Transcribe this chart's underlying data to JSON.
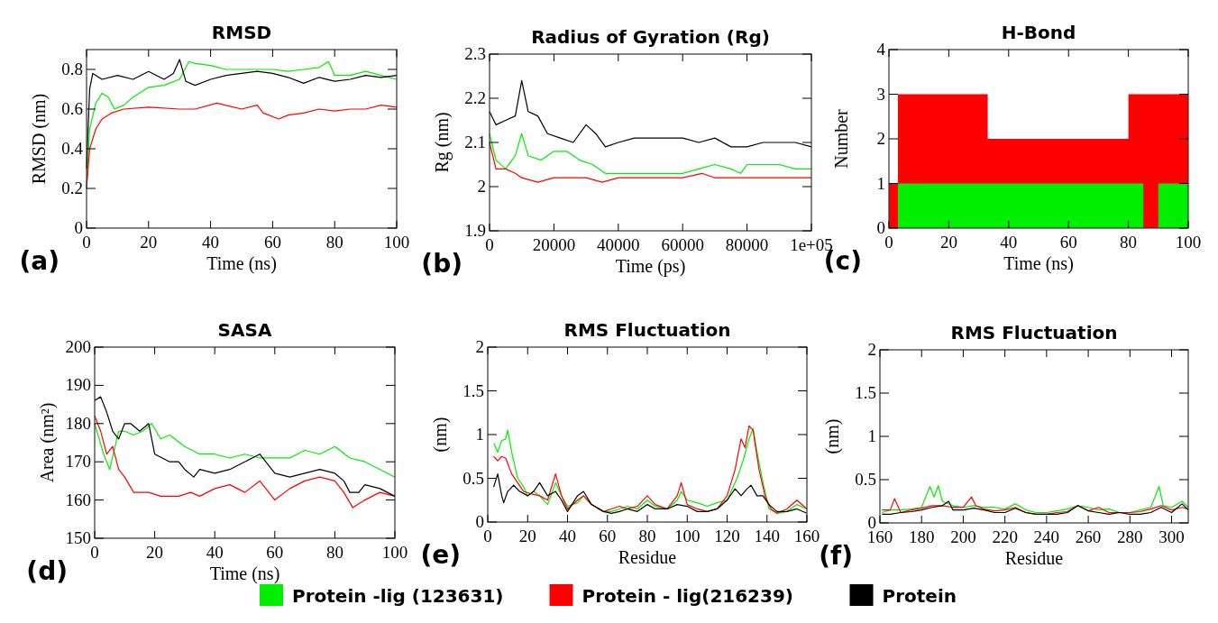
{
  "chart_data": [
    {
      "type": "line",
      "title": "RMSD",
      "xlabel": "Time (ns)",
      "ylabel": "RMSD (nm)",
      "xlim": [
        0,
        100
      ],
      "xticks": [
        0,
        20,
        40,
        60,
        80,
        100
      ],
      "ylim": [
        0,
        0.9
      ],
      "yticks": [
        0,
        0.2,
        0.4,
        0.6,
        0.8
      ],
      "legend": "bottom",
      "annotations": [
        "(a)"
      ],
      "series": [
        {
          "name": "Protein -lig (123631)",
          "color": "#00ee00",
          "x": [
            0,
            1,
            3,
            5,
            7,
            9,
            12,
            15,
            20,
            25,
            30,
            33,
            35,
            40,
            45,
            50,
            55,
            60,
            65,
            70,
            75,
            78,
            80,
            85,
            90,
            95,
            100
          ],
          "values": [
            0.2,
            0.5,
            0.63,
            0.68,
            0.66,
            0.6,
            0.62,
            0.66,
            0.71,
            0.72,
            0.75,
            0.84,
            0.83,
            0.82,
            0.8,
            0.8,
            0.8,
            0.8,
            0.79,
            0.8,
            0.81,
            0.84,
            0.77,
            0.77,
            0.79,
            0.77,
            0.75
          ]
        },
        {
          "name": "Protein  - lig(216239)",
          "color": "#ff0000",
          "x": [
            0,
            1,
            3,
            5,
            8,
            12,
            20,
            30,
            35,
            42,
            50,
            55,
            57,
            62,
            65,
            70,
            75,
            80,
            85,
            90,
            95,
            100
          ],
          "values": [
            0.2,
            0.4,
            0.5,
            0.55,
            0.58,
            0.6,
            0.61,
            0.6,
            0.6,
            0.63,
            0.6,
            0.62,
            0.58,
            0.55,
            0.57,
            0.58,
            0.6,
            0.59,
            0.6,
            0.6,
            0.62,
            0.61
          ]
        },
        {
          "name": "Protein",
          "color": "#000000",
          "x": [
            0,
            1,
            2,
            5,
            10,
            15,
            20,
            25,
            28,
            30,
            32,
            35,
            40,
            45,
            50,
            55,
            60,
            65,
            70,
            75,
            80,
            85,
            90,
            95,
            100
          ],
          "values": [
            0.3,
            0.7,
            0.78,
            0.75,
            0.77,
            0.75,
            0.79,
            0.75,
            0.78,
            0.85,
            0.74,
            0.72,
            0.75,
            0.77,
            0.78,
            0.79,
            0.78,
            0.76,
            0.73,
            0.76,
            0.74,
            0.75,
            0.77,
            0.76,
            0.77
          ]
        }
      ]
    },
    {
      "type": "line",
      "title": "Radius of Gyration (Rg)",
      "xlabel": "Time (ps)",
      "ylabel": "Rg (nm)",
      "xlim": [
        0,
        100000
      ],
      "xticks": [
        0,
        20000,
        40000,
        60000,
        80000,
        {
          "value": 100000,
          "label": "1e+05"
        }
      ],
      "ylim": [
        1.9,
        2.3
      ],
      "yticks": [
        1.9,
        2,
        2.1,
        2.2,
        2.3
      ],
      "annotations": [
        "(b)"
      ],
      "series": [
        {
          "color": "#00ee00",
          "x": [
            0,
            2000,
            5000,
            8000,
            10000,
            12000,
            16000,
            20000,
            24000,
            28000,
            32000,
            36000,
            40000,
            50000,
            60000,
            65000,
            70000,
            75000,
            78000,
            80000,
            85000,
            90000,
            95000,
            100000
          ],
          "values": [
            2.12,
            2.06,
            2.04,
            2.07,
            2.12,
            2.07,
            2.06,
            2.08,
            2.08,
            2.06,
            2.05,
            2.03,
            2.03,
            2.03,
            2.03,
            2.04,
            2.05,
            2.04,
            2.03,
            2.05,
            2.05,
            2.05,
            2.04,
            2.04
          ]
        },
        {
          "color": "#ff0000",
          "x": [
            0,
            2000,
            5000,
            8000,
            10000,
            15000,
            20000,
            25000,
            30000,
            35000,
            40000,
            50000,
            60000,
            66000,
            70000,
            75000,
            80000,
            85000,
            90000,
            95000,
            100000
          ],
          "values": [
            2.1,
            2.04,
            2.04,
            2.03,
            2.02,
            2.01,
            2.02,
            2.02,
            2.02,
            2.01,
            2.02,
            2.02,
            2.02,
            2.03,
            2.02,
            2.02,
            2.02,
            2.02,
            2.02,
            2.02,
            2.02
          ]
        },
        {
          "color": "#000000",
          "x": [
            0,
            2000,
            5000,
            8000,
            10000,
            12000,
            15000,
            18000,
            22000,
            26000,
            30000,
            33000,
            36000,
            40000,
            45000,
            50000,
            55000,
            60000,
            65000,
            70000,
            75000,
            80000,
            85000,
            90000,
            95000,
            100000
          ],
          "values": [
            2.17,
            2.14,
            2.15,
            2.16,
            2.24,
            2.17,
            2.16,
            2.12,
            2.11,
            2.1,
            2.14,
            2.12,
            2.09,
            2.1,
            2.11,
            2.11,
            2.11,
            2.11,
            2.1,
            2.11,
            2.09,
            2.09,
            2.1,
            2.1,
            2.1,
            2.09
          ]
        }
      ]
    },
    {
      "type": "area",
      "title": "H-Bond",
      "xlabel": "Time (ns)",
      "ylabel": "Number",
      "xlim": [
        0,
        100
      ],
      "xticks": [
        0,
        20,
        40,
        60,
        80,
        100
      ],
      "ylim": [
        0,
        4
      ],
      "yticks": [
        0,
        1,
        2,
        3,
        4
      ],
      "annotations": [
        "(c)"
      ],
      "series": [
        {
          "color": "#ff0000",
          "x": [
            0,
            3,
            33,
            80,
            100
          ],
          "values": [
            1,
            3,
            2,
            3,
            3
          ]
        },
        {
          "color": "#00ee00",
          "x": [
            0,
            3,
            85,
            90,
            100
          ],
          "values": [
            0,
            1,
            0,
            1,
            1
          ]
        }
      ]
    },
    {
      "type": "line",
      "title": "SASA",
      "xlabel": "Time (ns)",
      "ylabel": "Area (nm²)",
      "xlim": [
        0,
        100
      ],
      "xticks": [
        0,
        20,
        40,
        60,
        80,
        100
      ],
      "ylim": [
        150,
        200
      ],
      "yticks": [
        150,
        160,
        170,
        180,
        190,
        200
      ],
      "annotations": [
        "(d)"
      ],
      "series": [
        {
          "color": "#00ee00",
          "x": [
            0,
            3,
            5,
            8,
            10,
            13,
            16,
            19,
            22,
            25,
            30,
            35,
            40,
            45,
            50,
            55,
            60,
            65,
            70,
            75,
            80,
            85,
            90,
            95,
            100
          ],
          "values": [
            180,
            172,
            168,
            178,
            178,
            177,
            178,
            180,
            176,
            177,
            174,
            172,
            172,
            171,
            172,
            171,
            171,
            171,
            173,
            172,
            174,
            171,
            170,
            168,
            166
          ]
        },
        {
          "color": "#ff0000",
          "x": [
            0,
            2,
            4,
            6,
            8,
            10,
            13,
            18,
            22,
            28,
            32,
            35,
            40,
            45,
            50,
            55,
            58,
            60,
            65,
            70,
            75,
            80,
            83,
            86,
            90,
            95,
            100
          ],
          "values": [
            182,
            178,
            172,
            174,
            168,
            166,
            162,
            162,
            161,
            161,
            162,
            161,
            163,
            164,
            162,
            165,
            162,
            160,
            163,
            165,
            166,
            165,
            162,
            158,
            160,
            162,
            161
          ]
        },
        {
          "color": "#000000",
          "x": [
            0,
            2,
            4,
            6,
            8,
            10,
            12,
            15,
            18,
            20,
            25,
            28,
            30,
            33,
            35,
            40,
            45,
            50,
            55,
            60,
            65,
            70,
            75,
            80,
            83,
            85,
            88,
            90,
            95,
            100
          ],
          "values": [
            186,
            187,
            183,
            178,
            176,
            180,
            180,
            178,
            180,
            172,
            170,
            170,
            168,
            166,
            168,
            167,
            168,
            170,
            172,
            167,
            166,
            167,
            168,
            167,
            165,
            162,
            162,
            164,
            163,
            161
          ]
        }
      ]
    },
    {
      "type": "line",
      "title": "RMS Fluctuation",
      "xlabel": "Residue",
      "ylabel": "(nm)",
      "xlim": [
        0,
        160
      ],
      "xticks": [
        0,
        20,
        40,
        60,
        80,
        100,
        120,
        140,
        160
      ],
      "ylim": [
        0,
        2
      ],
      "yticks": [
        0,
        0.5,
        1,
        1.5,
        2
      ],
      "annotations": [
        "(e)"
      ],
      "series": [
        {
          "color": "#00ee00",
          "x": [
            3,
            5,
            7,
            9,
            10,
            12,
            15,
            18,
            20,
            23,
            26,
            30,
            34,
            37,
            40,
            45,
            48,
            52,
            58,
            62,
            66,
            70,
            75,
            80,
            84,
            90,
            95,
            97,
            100,
            105,
            110,
            115,
            120,
            125,
            128,
            131,
            133,
            135,
            138,
            141,
            145,
            150,
            155,
            160
          ],
          "values": [
            0.9,
            0.8,
            0.93,
            0.95,
            1.05,
            0.8,
            0.5,
            0.4,
            0.3,
            0.35,
            0.3,
            0.2,
            0.45,
            0.3,
            0.18,
            0.22,
            0.3,
            0.2,
            0.12,
            0.12,
            0.15,
            0.18,
            0.15,
            0.25,
            0.18,
            0.15,
            0.25,
            0.35,
            0.25,
            0.22,
            0.18,
            0.22,
            0.25,
            0.5,
            0.7,
            0.95,
            1.07,
            0.8,
            0.45,
            0.15,
            0.1,
            0.12,
            0.2,
            0.15
          ]
        },
        {
          "color": "#ff0000",
          "x": [
            3,
            5,
            7,
            9,
            12,
            15,
            18,
            22,
            26,
            30,
            34,
            37,
            40,
            45,
            48,
            52,
            58,
            62,
            66,
            70,
            75,
            80,
            84,
            90,
            95,
            97,
            100,
            105,
            110,
            115,
            120,
            124,
            127,
            129,
            131,
            133,
            136,
            139,
            142,
            145,
            150,
            155,
            160
          ],
          "values": [
            0.75,
            0.7,
            0.75,
            0.73,
            0.55,
            0.45,
            0.35,
            0.32,
            0.3,
            0.25,
            0.55,
            0.3,
            0.15,
            0.25,
            0.3,
            0.2,
            0.12,
            0.15,
            0.18,
            0.15,
            0.18,
            0.3,
            0.2,
            0.15,
            0.3,
            0.45,
            0.2,
            0.15,
            0.12,
            0.15,
            0.3,
            0.6,
            0.95,
            0.85,
            1.1,
            1.05,
            0.6,
            0.3,
            0.15,
            0.1,
            0.15,
            0.25,
            0.15
          ]
        },
        {
          "color": "#000000",
          "x": [
            3,
            5,
            7,
            8,
            10,
            13,
            16,
            20,
            23,
            26,
            30,
            34,
            37,
            40,
            45,
            48,
            52,
            58,
            62,
            66,
            70,
            75,
            80,
            84,
            90,
            95,
            100,
            105,
            110,
            115,
            120,
            124,
            127,
            130,
            132,
            135,
            138,
            141,
            145,
            150,
            155,
            160
          ],
          "values": [
            0.4,
            0.55,
            0.3,
            0.22,
            0.35,
            0.42,
            0.35,
            0.3,
            0.35,
            0.45,
            0.3,
            0.35,
            0.25,
            0.12,
            0.3,
            0.35,
            0.2,
            0.12,
            0.1,
            0.12,
            0.15,
            0.12,
            0.2,
            0.15,
            0.15,
            0.2,
            0.18,
            0.12,
            0.12,
            0.15,
            0.25,
            0.38,
            0.3,
            0.38,
            0.42,
            0.3,
            0.3,
            0.2,
            0.12,
            0.12,
            0.15,
            0.1
          ]
        }
      ]
    },
    {
      "type": "line",
      "title": "RMS Fluctuation",
      "xlabel": "Residue",
      "ylabel": "(nm)",
      "xlim": [
        160,
        308
      ],
      "xticks": [
        160,
        180,
        200,
        220,
        240,
        260,
        280,
        300
      ],
      "ylim": [
        0,
        2
      ],
      "yticks": [
        0,
        0.5,
        1,
        1.5,
        2
      ],
      "annotations": [
        "(f)"
      ],
      "series": [
        {
          "color": "#00ee00",
          "x": [
            161,
            165,
            170,
            175,
            180,
            184,
            186,
            188,
            190,
            195,
            200,
            205,
            210,
            215,
            220,
            225,
            230,
            235,
            240,
            245,
            250,
            255,
            260,
            265,
            270,
            275,
            280,
            285,
            290,
            294,
            296,
            300,
            305,
            308
          ],
          "values": [
            0.12,
            0.15,
            0.15,
            0.16,
            0.18,
            0.42,
            0.3,
            0.43,
            0.25,
            0.2,
            0.18,
            0.2,
            0.18,
            0.18,
            0.16,
            0.22,
            0.15,
            0.12,
            0.12,
            0.14,
            0.16,
            0.2,
            0.18,
            0.15,
            0.16,
            0.12,
            0.12,
            0.15,
            0.18,
            0.42,
            0.2,
            0.18,
            0.25,
            0.18
          ]
        },
        {
          "color": "#ff0000",
          "x": [
            161,
            165,
            167,
            170,
            175,
            180,
            185,
            190,
            195,
            200,
            204,
            206,
            210,
            215,
            220,
            225,
            230,
            235,
            240,
            245,
            250,
            255,
            260,
            265,
            270,
            275,
            280,
            285,
            290,
            295,
            300,
            305,
            308
          ],
          "values": [
            0.15,
            0.15,
            0.28,
            0.12,
            0.15,
            0.17,
            0.2,
            0.2,
            0.18,
            0.18,
            0.3,
            0.2,
            0.16,
            0.14,
            0.15,
            0.18,
            0.12,
            0.1,
            0.1,
            0.12,
            0.13,
            0.2,
            0.14,
            0.18,
            0.12,
            0.12,
            0.12,
            0.13,
            0.16,
            0.2,
            0.15,
            0.18,
            0.16
          ]
        },
        {
          "color": "#000000",
          "x": [
            161,
            165,
            170,
            175,
            180,
            185,
            190,
            193,
            195,
            200,
            205,
            210,
            215,
            220,
            225,
            230,
            235,
            240,
            245,
            250,
            255,
            260,
            265,
            270,
            275,
            280,
            285,
            290,
            295,
            300,
            305,
            308
          ],
          "values": [
            0.1,
            0.1,
            0.12,
            0.13,
            0.15,
            0.18,
            0.2,
            0.25,
            0.15,
            0.15,
            0.17,
            0.15,
            0.12,
            0.12,
            0.17,
            0.12,
            0.1,
            0.1,
            0.1,
            0.12,
            0.2,
            0.14,
            0.12,
            0.1,
            0.12,
            0.1,
            0.1,
            0.12,
            0.18,
            0.12,
            0.22,
            0.15
          ]
        }
      ]
    }
  ]
}
